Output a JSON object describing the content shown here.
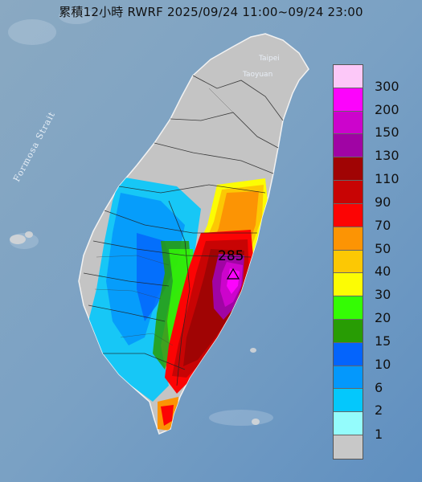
{
  "title": "累積12小時 RWRF 2025/09/24 11:00~09/24 23:00",
  "peak_value": "285",
  "labels": {
    "strait": "Formosa Strait",
    "taipei": "Taipei",
    "taoyuan": "Taoyuan"
  },
  "legend": {
    "items": [
      {
        "label": "300",
        "color": "#fcc8f8"
      },
      {
        "label": "200",
        "color": "#fc04fc"
      },
      {
        "label": "150",
        "color": "#cc04cc"
      },
      {
        "label": "130",
        "color": "#a004a4"
      },
      {
        "label": "110",
        "color": "#a00404"
      },
      {
        "label": "90",
        "color": "#c80404"
      },
      {
        "label": "70",
        "color": "#fc0404"
      },
      {
        "label": "50",
        "color": "#fc9404"
      },
      {
        "label": "40",
        "color": "#fcc804"
      },
      {
        "label": "30",
        "color": "#fcfc04"
      },
      {
        "label": "20",
        "color": "#34fc04"
      },
      {
        "label": "15",
        "color": "#289c04"
      },
      {
        "label": "10",
        "color": "#0464fc"
      },
      {
        "label": "6",
        "color": "#0498fc"
      },
      {
        "label": "2",
        "color": "#04c8fc"
      },
      {
        "label": "1",
        "color": "#94fcfc"
      },
      {
        "label": "",
        "color": "#c8c8c8"
      }
    ]
  }
}
